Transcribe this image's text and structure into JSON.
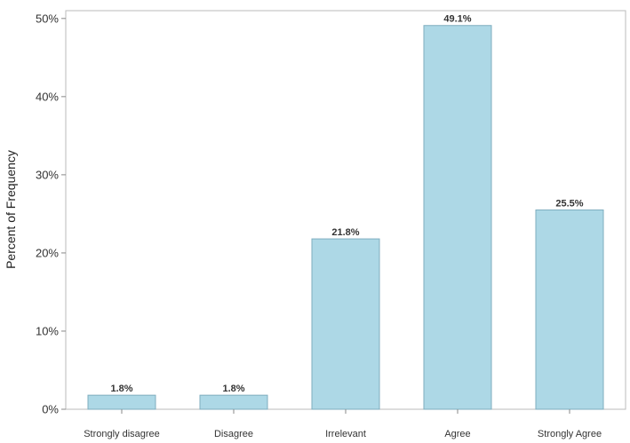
{
  "chart_data": {
    "type": "bar",
    "title": "",
    "xlabel": "",
    "ylabel": "Percent of Frequency",
    "categories": [
      "Strongly disagree",
      "Disagree",
      "Irrelevant",
      "Agree",
      "Strongly Agree"
    ],
    "values": [
      1.8,
      1.8,
      21.8,
      49.1,
      25.5
    ],
    "data_labels": [
      "1.8%",
      "1.8%",
      "21.8%",
      "49.1%",
      "25.5%"
    ],
    "ylim": [
      0,
      51
    ],
    "yticks": [
      0,
      10,
      20,
      30,
      40,
      50
    ],
    "ytick_labels": [
      "0%",
      "10%",
      "20%",
      "30%",
      "40%",
      "50%"
    ],
    "grid": false,
    "legend": "none",
    "colors": {
      "bar_fill": "#add8e6",
      "bar_stroke": "#7faebf",
      "frame": "#bbbbbb"
    }
  }
}
